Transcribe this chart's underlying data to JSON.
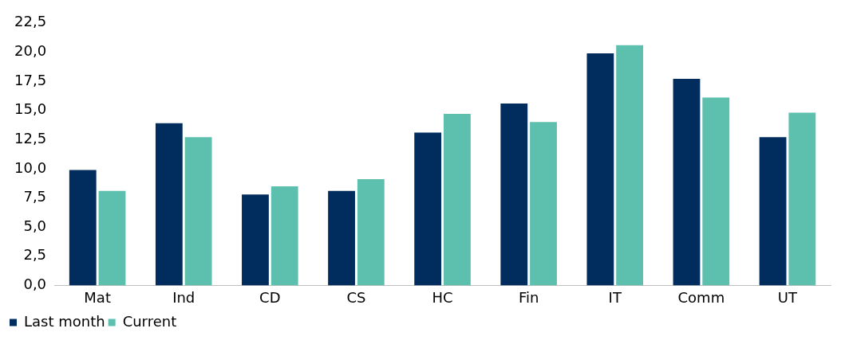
{
  "chart_data": {
    "type": "bar",
    "categories": [
      "Mat",
      "Ind",
      "CD",
      "CS",
      "HC",
      "Fin",
      "IT",
      "Comm",
      "UT"
    ],
    "series": [
      {
        "name": "Last month",
        "color": "#002d5e",
        "values": [
          9.9,
          13.9,
          7.8,
          8.1,
          13.1,
          15.6,
          19.9,
          17.7,
          12.7
        ]
      },
      {
        "name": "Current",
        "color": "#5dbfae",
        "values": [
          8.1,
          12.7,
          8.5,
          9.1,
          14.7,
          14.0,
          20.6,
          16.1,
          14.8
        ]
      }
    ],
    "ylim": [
      0,
      22.5
    ],
    "yticks": [
      {
        "value": 0,
        "label": "0,0"
      },
      {
        "value": 2.5,
        "label": "2,5"
      },
      {
        "value": 5,
        "label": "5,0"
      },
      {
        "value": 7.5,
        "label": "7,5"
      },
      {
        "value": 10,
        "label": "10,0"
      },
      {
        "value": 12.5,
        "label": "12,5"
      },
      {
        "value": 15,
        "label": "15,0"
      },
      {
        "value": 17.5,
        "label": "17,5"
      },
      {
        "value": 20,
        "label": "20,0"
      },
      {
        "value": 22.5,
        "label": "22,5"
      }
    ],
    "grid": false,
    "legend": "bottom left"
  }
}
